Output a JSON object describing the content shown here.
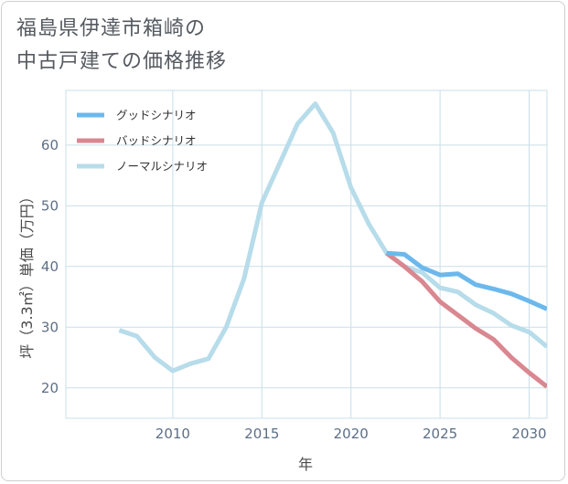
{
  "title_lines": [
    "福島県伊達市箱崎の",
    "中古戸建ての価格推移"
  ],
  "chart_data": {
    "type": "line",
    "title": "福島県伊達市箱崎の中古戸建ての価格推移",
    "xlabel": "年",
    "ylabel": "坪（3.3㎡）単価（万円）",
    "xlim": [
      2004,
      2031
    ],
    "ylim": [
      15,
      69
    ],
    "x_ticks": [
      2010,
      2015,
      2020,
      2025,
      2030
    ],
    "y_ticks": [
      20,
      30,
      40,
      50,
      60
    ],
    "grid": true,
    "legend_position": "top-left",
    "series": [
      {
        "name": "グッドシナリオ",
        "color": "#6cb8ec",
        "x": [
          2022,
          2023,
          2024,
          2025,
          2026,
          2027,
          2028,
          2029,
          2030,
          2031
        ],
        "y": [
          42.2,
          42.0,
          39.8,
          38.6,
          38.8,
          37.0,
          36.3,
          35.5,
          34.3,
          33.0
        ]
      },
      {
        "name": "バッドシナリオ",
        "color": "#d98790",
        "x": [
          2022,
          2023,
          2024,
          2025,
          2026,
          2027,
          2028,
          2029,
          2030,
          2031
        ],
        "y": [
          42.2,
          40.0,
          37.5,
          34.2,
          32.0,
          29.8,
          28.0,
          25.0,
          22.5,
          20.2
        ]
      },
      {
        "name": "ノーマルシナリオ",
        "color": "#b7dcea",
        "x": [
          2007,
          2008,
          2009,
          2010,
          2011,
          2012,
          2013,
          2014,
          2015,
          2016,
          2017,
          2018,
          2019,
          2020,
          2021,
          2022,
          2023,
          2024,
          2025,
          2026,
          2027,
          2028,
          2029,
          2030,
          2031
        ],
        "y": [
          29.5,
          28.5,
          25.0,
          22.8,
          24.0,
          24.8,
          30.0,
          38.0,
          50.5,
          57.0,
          63.5,
          66.8,
          62.0,
          53.0,
          47.0,
          42.2,
          40.0,
          39.0,
          36.5,
          35.8,
          33.7,
          32.3,
          30.3,
          29.2,
          26.8
        ]
      }
    ]
  }
}
